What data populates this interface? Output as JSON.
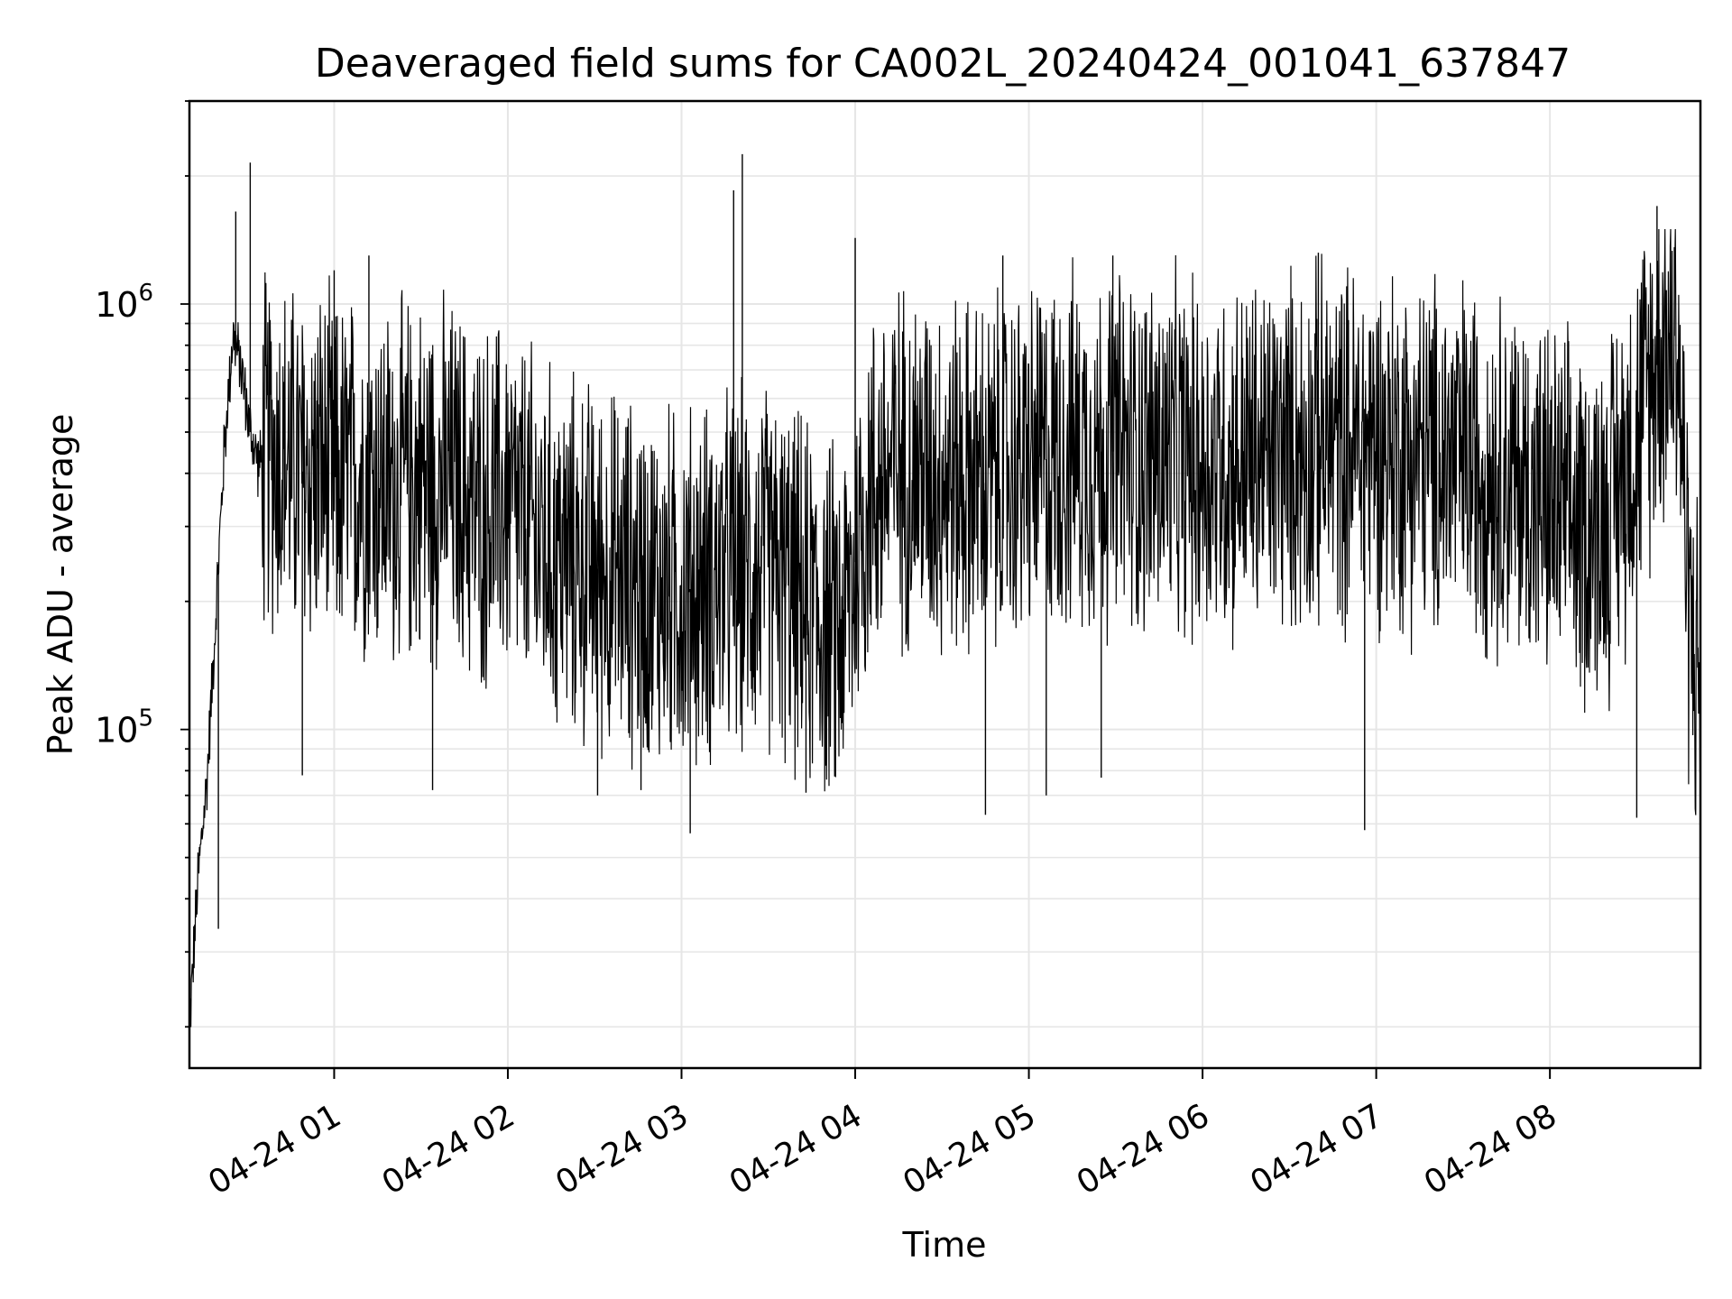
{
  "chart_data": {
    "type": "line",
    "title": "Deaveraged field sums for CA002L_20240424_001041_637847",
    "xlabel": "Time",
    "ylabel": "Peak ADU - average",
    "yscale": "log",
    "ylim": [
      16000,
      3000000
    ],
    "xlim": [
      "2024-04-24 00:10",
      "2024-04-24 08:52"
    ],
    "grid": true,
    "line_color": "#000000",
    "x_ticks": [
      {
        "x": "2024-04-24 01:00",
        "label": "04-24 01"
      },
      {
        "x": "2024-04-24 02:00",
        "label": "04-24 02"
      },
      {
        "x": "2024-04-24 03:00",
        "label": "04-24 03"
      },
      {
        "x": "2024-04-24 04:00",
        "label": "04-24 04"
      },
      {
        "x": "2024-04-24 05:00",
        "label": "04-24 05"
      },
      {
        "x": "2024-04-24 06:00",
        "label": "04-24 06"
      },
      {
        "x": "2024-04-24 07:00",
        "label": "04-24 07"
      },
      {
        "x": "2024-04-24 08:00",
        "label": "04-24 08"
      }
    ],
    "y_ticks": [
      {
        "y": 100000,
        "base": "10",
        "exp": "5"
      },
      {
        "y": 1000000,
        "base": "10",
        "exp": "6"
      }
    ],
    "series": [
      {
        "x": [
          "2024-04-24 00:10",
          "2024-04-24 00:13",
          "2024-04-24 00:16",
          "2024-04-24 00:19",
          "2024-04-24 00:22",
          "2024-04-24 00:25",
          "2024-04-24 00:28",
          "2024-04-24 00:31",
          "2024-04-24 00:34",
          "2024-04-24 00:37",
          "2024-04-24 00:40",
          "2024-04-24 00:45",
          "2024-04-24 00:50",
          "2024-04-24 00:55",
          "2024-04-24 01:00",
          "2024-04-24 01:10",
          "2024-04-24 01:20",
          "2024-04-24 01:30",
          "2024-04-24 01:40",
          "2024-04-24 01:50",
          "2024-04-24 02:00",
          "2024-04-24 02:15",
          "2024-04-24 02:30",
          "2024-04-24 02:45",
          "2024-04-24 03:00",
          "2024-04-24 03:15",
          "2024-04-24 03:30",
          "2024-04-24 03:45",
          "2024-04-24 03:55",
          "2024-04-24 04:05",
          "2024-04-24 04:15",
          "2024-04-24 04:30",
          "2024-04-24 04:45",
          "2024-04-24 05:00",
          "2024-04-24 05:15",
          "2024-04-24 05:30",
          "2024-04-24 05:45",
          "2024-04-24 06:00",
          "2024-04-24 06:15",
          "2024-04-24 06:30",
          "2024-04-24 06:45",
          "2024-04-24 07:00",
          "2024-04-24 07:15",
          "2024-04-24 07:30",
          "2024-04-24 07:45",
          "2024-04-24 08:00",
          "2024-04-24 08:10",
          "2024-04-24 08:20",
          "2024-04-24 08:30",
          "2024-04-24 08:38",
          "2024-04-24 08:44",
          "2024-04-24 08:48",
          "2024-04-24 08:52"
        ],
        "y": [
          20000,
          45000,
          75000,
          180000,
          450000,
          850000,
          700000,
          500000,
          420000,
          460000,
          450000,
          420000,
          400000,
          410000,
          380000,
          400000,
          370000,
          390000,
          380000,
          330000,
          340000,
          260000,
          240000,
          220000,
          210000,
          230000,
          240000,
          190000,
          170000,
          360000,
          420000,
          400000,
          380000,
          420000,
          450000,
          450000,
          440000,
          420000,
          430000,
          450000,
          460000,
          470000,
          440000,
          430000,
          400000,
          330000,
          300000,
          320000,
          500000,
          800000,
          850000,
          200000,
          120000
        ]
      }
    ],
    "peaks": [
      {
        "x": "2024-04-24 00:26",
        "y": 1650000
      },
      {
        "x": "2024-04-24 00:31",
        "y": 2150000
      },
      {
        "x": "2024-04-24 01:00",
        "y": 1200000
      },
      {
        "x": "2024-04-24 01:12",
        "y": 1300000
      },
      {
        "x": "2024-04-24 03:21",
        "y": 2250000
      },
      {
        "x": "2024-04-24 03:18",
        "y": 1850000
      },
      {
        "x": "2024-04-24 04:00",
        "y": 1430000
      },
      {
        "x": "2024-04-24 04:51",
        "y": 1300000
      },
      {
        "x": "2024-04-24 05:29",
        "y": 1300000
      },
      {
        "x": "2024-04-24 06:40",
        "y": 1320000
      },
      {
        "x": "2024-04-24 08:37",
        "y": 1700000
      },
      {
        "x": "2024-04-24 08:43",
        "y": 1360000
      }
    ],
    "dips": [
      {
        "x": "2024-04-24 00:20",
        "y": 34000
      },
      {
        "x": "2024-04-24 00:49",
        "y": 78000
      },
      {
        "x": "2024-04-24 01:34",
        "y": 72000
      },
      {
        "x": "2024-04-24 02:31",
        "y": 70000
      },
      {
        "x": "2024-04-24 02:46",
        "y": 72000
      },
      {
        "x": "2024-04-24 03:03",
        "y": 57000
      },
      {
        "x": "2024-04-24 03:43",
        "y": 71000
      },
      {
        "x": "2024-04-24 04:45",
        "y": 63000
      },
      {
        "x": "2024-04-24 05:06",
        "y": 70000
      },
      {
        "x": "2024-04-24 05:25",
        "y": 77000
      },
      {
        "x": "2024-04-24 06:56",
        "y": 58000
      },
      {
        "x": "2024-04-24 08:30",
        "y": 62000
      }
    ]
  }
}
